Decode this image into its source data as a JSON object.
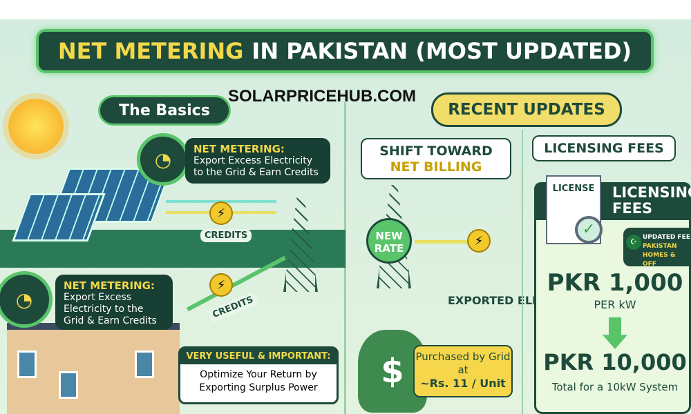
{
  "title": {
    "highlight": "NET METERING",
    "rest": "IN PAKISTAN (MOST UPDATED)"
  },
  "watermark": "SOLARPRICEHUB.COM",
  "basics": {
    "label": "The Basics",
    "callout_top": {
      "heading": "NET METERING:",
      "body": "Export Excess Electricity to the Grid & Earn Credits"
    },
    "credits_label_1": "CREDITS",
    "credits_label_2": "CREDITS",
    "callout_bottom": {
      "heading": "NET METERING:",
      "body": "Export Excess Electricity to the Grid & Earn Credits"
    },
    "useful": {
      "heading": "VERY USEFUL & IMPORTANT:",
      "body": "Optimize Your Return by Exporting Surplus Power"
    }
  },
  "recent": {
    "label": "RECENT UPDATES",
    "shift": {
      "line1": "SHIFT TOWARD",
      "line2": "NET BILLING"
    },
    "new_rate": "NEW RATE",
    "exported": "EXPORTED ELECTRICITY",
    "currency_symbol": "$",
    "purchased": {
      "line": "Purchased by Grid at",
      "rate": "~Rs. 11 / Unit"
    },
    "licensing": {
      "title": "LICENSING FEES",
      "doc_label": "LICENSE",
      "panel_title": "LICENSING FEES",
      "badge": {
        "line1": "UPDATED FEE",
        "line2": "PAKISTAN",
        "line3": "HOMES & OFF"
      },
      "price_per_kw": "PKR 1,000",
      "per_kw": "PER kW",
      "price_total": "PKR 10,000",
      "total_note": "Total for a 10kW System"
    }
  },
  "colors": {
    "dark_green": "#1e4a3b",
    "accent_green": "#59c46a",
    "yellow": "#f2d84a"
  }
}
